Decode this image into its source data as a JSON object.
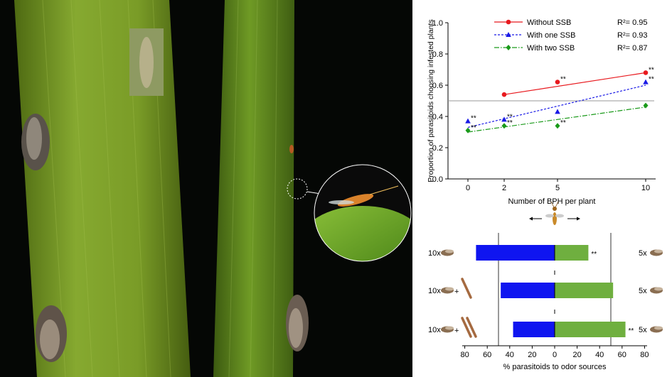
{
  "line_chart": {
    "chart_data": {
      "type": "line",
      "xlabel": "Number of BPH per plant",
      "ylabel": "Proportion of parasitoids choosing infested plants",
      "x": [
        0,
        2,
        5,
        10
      ],
      "xticks": [
        "0",
        "2",
        "5",
        "10"
      ],
      "ylim": [
        0.0,
        1.0
      ],
      "yticks": [
        "0.0",
        "0.2",
        "0.4",
        "0.6",
        "0.8",
        "1.0"
      ],
      "reference_line": 0.5,
      "grid": false,
      "legend_position": "top-center",
      "series": [
        {
          "name": "Without SSB",
          "color": "#e8191e",
          "marker": "circle",
          "line_style": "solid",
          "x": [
            2,
            5,
            10
          ],
          "values": [
            0.54,
            0.62,
            0.68
          ],
          "fit": [
            [
              2,
              0.54
            ],
            [
              10,
              0.68
            ]
          ],
          "r2": "R²= 0.95",
          "significance": [
            "",
            "**",
            "**"
          ]
        },
        {
          "name": "With one SSB",
          "color": "#1a1ae6",
          "marker": "triangle",
          "line_style": "dashed",
          "x": [
            0,
            2,
            5,
            10
          ],
          "values": [
            0.37,
            0.38,
            0.43,
            0.62
          ],
          "fit": [
            [
              0,
              0.33
            ],
            [
              10,
              0.6
            ]
          ],
          "r2": "R²= 0.93",
          "significance": [
            "**",
            "**",
            "",
            "**"
          ]
        },
        {
          "name": "With two SSB",
          "color": "#1a9a1a",
          "marker": "diamond",
          "line_style": "dash-dot",
          "x": [
            0,
            2,
            5,
            10
          ],
          "values": [
            0.31,
            0.34,
            0.34,
            0.47
          ],
          "fit": [
            [
              0,
              0.3
            ],
            [
              10,
              0.46
            ]
          ],
          "r2": "R²= 0.87",
          "significance": [
            "**",
            "**",
            "**",
            ""
          ]
        }
      ]
    }
  },
  "bar_chart": {
    "chart_data": {
      "type": "bar",
      "orientation": "horizontal-diverging",
      "xlabel": "% parasitoids to odor sources",
      "xlim": [
        -80,
        80
      ],
      "xticks": [
        "80",
        "60",
        "40",
        "20",
        "0",
        "20",
        "40",
        "60",
        "80"
      ],
      "reference_lines": [
        -50,
        50
      ],
      "grid": false,
      "rows": [
        {
          "left_label": "10x",
          "right_label": "5x",
          "left_value": 70,
          "right_value": 30,
          "left_ssb": 0,
          "significance": "**"
        },
        {
          "left_label": "10x",
          "right_label": "5x",
          "left_value": 48,
          "right_value": 52,
          "left_ssb": 1,
          "significance": ""
        },
        {
          "left_label": "10x",
          "right_label": "5x",
          "left_value": 37,
          "right_value": 63,
          "left_ssb": 2,
          "significance": "**"
        }
      ],
      "plus_sign": "+",
      "colors": {
        "left": "#0f15f0",
        "right": "#6faf3f"
      }
    }
  }
}
